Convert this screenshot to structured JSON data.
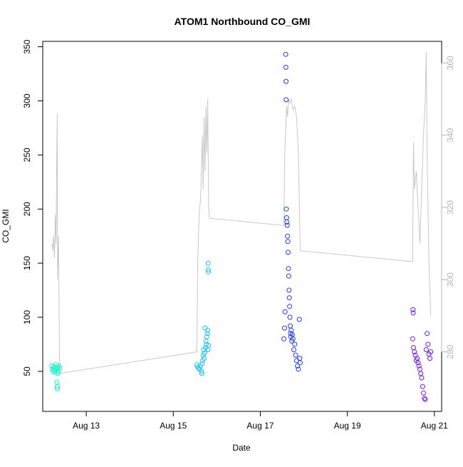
{
  "chart_data": {
    "type": "scatter",
    "title": "ATOM1 Northbound CO_GMI",
    "xlabel": "Date",
    "ylabel": "CO_GMI",
    "xlim": [
      "2016-08-12T00:00",
      "2016-08-21T04:00"
    ],
    "ylim": [
      13,
      355
    ],
    "y2lim": [
      263.5,
      366
    ],
    "x_ticks": [
      {
        "x": "2016-08-13T00:00",
        "label": "Aug 13"
      },
      {
        "x": "2016-08-15T00:00",
        "label": "Aug 15"
      },
      {
        "x": "2016-08-17T00:00",
        "label": "Aug 17"
      },
      {
        "x": "2016-08-19T00:00",
        "label": "Aug 19"
      },
      {
        "x": "2016-08-21T00:00",
        "label": "Aug 21"
      }
    ],
    "y_ticks": [
      50,
      100,
      150,
      200,
      250,
      300,
      350
    ],
    "y2_ticks": [
      280,
      300,
      320,
      340,
      360
    ],
    "grid": false,
    "colors": {
      "flight_1": "#14f5c8",
      "flight_2": "#1ec3f5",
      "flight_3": "#1e3cf5",
      "flight_4": "#7814f5",
      "altitude_line": "#c8c8c8",
      "axis": "#000000",
      "right_axis": "#b4b4b4"
    },
    "series": [
      {
        "group": "flight_1",
        "x_start": "2016-08-12T05:00",
        "x_end": "2016-08-12T09:30",
        "points": [
          [
            "2016-08-12T05:00",
            55
          ],
          [
            "2016-08-12T05:20",
            52
          ],
          [
            "2016-08-12T05:40",
            50
          ],
          [
            "2016-08-12T06:00",
            54
          ],
          [
            "2016-08-12T06:20",
            51
          ],
          [
            "2016-08-12T06:40",
            53
          ],
          [
            "2016-08-12T07:00",
            49
          ],
          [
            "2016-08-12T07:20",
            56
          ],
          [
            "2016-08-12T07:40",
            52
          ],
          [
            "2016-08-12T08:00",
            54
          ],
          [
            "2016-08-12T08:20",
            48
          ],
          [
            "2016-08-12T08:40",
            50
          ],
          [
            "2016-08-12T09:00",
            55
          ],
          [
            "2016-08-12T09:20",
            53
          ],
          [
            "2016-08-12T07:50",
            40
          ],
          [
            "2016-08-12T08:00",
            36
          ],
          [
            "2016-08-12T08:05",
            34
          ]
        ]
      },
      {
        "group": "flight_2",
        "x_start": "2016-08-15T13:00",
        "x_end": "2016-08-15T19:30",
        "points": [
          [
            "2016-08-15T13:00",
            56
          ],
          [
            "2016-08-15T13:30",
            54
          ],
          [
            "2016-08-15T14:00",
            53
          ],
          [
            "2016-08-15T14:30",
            52
          ],
          [
            "2016-08-15T15:00",
            55
          ],
          [
            "2016-08-15T15:30",
            50
          ],
          [
            "2016-08-15T15:45",
            48
          ],
          [
            "2016-08-15T16:00",
            57
          ],
          [
            "2016-08-15T16:15",
            60
          ],
          [
            "2016-08-15T16:30",
            65
          ],
          [
            "2016-08-15T16:45",
            70
          ],
          [
            "2016-08-15T17:00",
            62
          ],
          [
            "2016-08-15T17:15",
            67
          ],
          [
            "2016-08-15T17:30",
            90
          ],
          [
            "2016-08-15T17:45",
            72
          ],
          [
            "2016-08-15T18:00",
            78
          ],
          [
            "2016-08-15T18:15",
            75
          ],
          [
            "2016-08-15T18:30",
            82
          ],
          [
            "2016-08-15T18:45",
            85
          ],
          [
            "2016-08-15T19:00",
            88
          ],
          [
            "2016-08-15T19:10",
            70
          ],
          [
            "2016-08-15T19:15",
            150
          ],
          [
            "2016-08-15T19:20",
            144
          ],
          [
            "2016-08-15T19:25",
            142
          ],
          [
            "2016-08-15T19:30",
            74
          ]
        ]
      },
      {
        "group": "flight_3",
        "x_start": "2016-08-17T13:00",
        "x_end": "2016-08-17T22:00",
        "points": [
          [
            "2016-08-17T13:00",
            80
          ],
          [
            "2016-08-17T13:20",
            90
          ],
          [
            "2016-08-17T13:40",
            105
          ],
          [
            "2016-08-17T14:00",
            343
          ],
          [
            "2016-08-17T14:05",
            331
          ],
          [
            "2016-08-17T14:10",
            318
          ],
          [
            "2016-08-17T14:15",
            301
          ],
          [
            "2016-08-17T14:20",
            200
          ],
          [
            "2016-08-17T14:30",
            192
          ],
          [
            "2016-08-17T14:40",
            188
          ],
          [
            "2016-08-17T14:50",
            185
          ],
          [
            "2016-08-17T15:00",
            175
          ],
          [
            "2016-08-17T15:10",
            170
          ],
          [
            "2016-08-17T15:20",
            160
          ],
          [
            "2016-08-17T15:30",
            145
          ],
          [
            "2016-08-17T15:40",
            138
          ],
          [
            "2016-08-17T15:50",
            125
          ],
          [
            "2016-08-17T16:00",
            118
          ],
          [
            "2016-08-17T16:10",
            110
          ],
          [
            "2016-08-17T16:20",
            100
          ],
          [
            "2016-08-17T16:30",
            92
          ],
          [
            "2016-08-17T16:40",
            85
          ],
          [
            "2016-08-17T16:50",
            82
          ],
          [
            "2016-08-17T17:00",
            88
          ],
          [
            "2016-08-17T17:20",
            78
          ],
          [
            "2016-08-17T17:40",
            84
          ],
          [
            "2016-08-17T18:00",
            80
          ],
          [
            "2016-08-17T18:30",
            70
          ],
          [
            "2016-08-17T19:00",
            75
          ],
          [
            "2016-08-17T19:30",
            65
          ],
          [
            "2016-08-17T20:00",
            60
          ],
          [
            "2016-08-17T20:30",
            55
          ],
          [
            "2016-08-17T21:00",
            52
          ],
          [
            "2016-08-17T21:30",
            98
          ],
          [
            "2016-08-17T21:45",
            62
          ],
          [
            "2016-08-17T22:00",
            58
          ]
        ]
      },
      {
        "group": "flight_4",
        "x_start": "2016-08-20T12:00",
        "x_end": "2016-08-20T22:00",
        "points": [
          [
            "2016-08-20T12:00",
            80
          ],
          [
            "2016-08-20T12:10",
            107
          ],
          [
            "2016-08-20T12:20",
            104
          ],
          [
            "2016-08-20T12:30",
            72
          ],
          [
            "2016-08-20T13:00",
            68
          ],
          [
            "2016-08-20T13:30",
            65
          ],
          [
            "2016-08-20T14:00",
            60
          ],
          [
            "2016-08-20T14:30",
            62
          ],
          [
            "2016-08-20T15:00",
            58
          ],
          [
            "2016-08-20T15:30",
            55
          ],
          [
            "2016-08-20T16:00",
            52
          ],
          [
            "2016-08-20T16:30",
            48
          ],
          [
            "2016-08-20T17:00",
            44
          ],
          [
            "2016-08-20T17:30",
            36
          ],
          [
            "2016-08-20T18:00",
            30
          ],
          [
            "2016-08-20T18:30",
            25
          ],
          [
            "2016-08-20T19:00",
            24
          ],
          [
            "2016-08-20T19:30",
            70
          ],
          [
            "2016-08-20T20:00",
            85
          ],
          [
            "2016-08-20T20:30",
            75
          ],
          [
            "2016-08-20T21:00",
            66
          ],
          [
            "2016-08-20T21:30",
            62
          ],
          [
            "2016-08-20T22:00",
            68
          ]
        ]
      }
    ],
    "altitude_trace": [
      [
        "2016-08-12T05:00",
        310
      ],
      [
        "2016-08-12T05:30",
        308
      ],
      [
        "2016-08-12T06:00",
        312
      ],
      [
        "2016-08-12T06:30",
        306
      ],
      [
        "2016-08-12T07:00",
        318
      ],
      [
        "2016-08-12T07:20",
        310
      ],
      [
        "2016-08-12T07:40",
        330
      ],
      [
        "2016-08-12T08:00",
        346
      ],
      [
        "2016-08-12T08:10",
        300
      ],
      [
        "2016-08-12T08:40",
        312
      ],
      [
        "2016-08-12T09:20",
        274
      ],
      [
        "2016-08-15T13:00",
        280
      ],
      [
        "2016-08-15T13:30",
        305
      ],
      [
        "2016-08-15T14:00",
        314
      ],
      [
        "2016-08-15T14:30",
        320
      ],
      [
        "2016-08-15T15:00",
        322
      ],
      [
        "2016-08-15T15:30",
        330
      ],
      [
        "2016-08-15T16:00",
        340
      ],
      [
        "2016-08-15T16:30",
        325
      ],
      [
        "2016-08-15T17:00",
        345
      ],
      [
        "2016-08-15T17:30",
        330
      ],
      [
        "2016-08-15T18:00",
        348
      ],
      [
        "2016-08-15T18:30",
        335
      ],
      [
        "2016-08-15T19:00",
        350
      ],
      [
        "2016-08-15T19:30",
        320
      ],
      [
        "2016-08-15T20:00",
        317
      ],
      [
        "2016-08-17T13:00",
        315
      ],
      [
        "2016-08-17T13:30",
        335
      ],
      [
        "2016-08-17T14:00",
        342
      ],
      [
        "2016-08-17T14:30",
        348
      ],
      [
        "2016-08-17T15:00",
        345
      ],
      [
        "2016-08-17T15:30",
        350
      ],
      [
        "2016-08-17T16:00",
        349
      ],
      [
        "2016-08-17T17:00",
        350
      ],
      [
        "2016-08-17T18:00",
        347
      ],
      [
        "2016-08-17T19:00",
        348
      ],
      [
        "2016-08-17T20:00",
        345
      ],
      [
        "2016-08-17T21:00",
        335
      ],
      [
        "2016-08-17T22:00",
        308
      ],
      [
        "2016-08-20T12:00",
        305
      ],
      [
        "2016-08-20T12:30",
        338
      ],
      [
        "2016-08-20T13:00",
        325
      ],
      [
        "2016-08-20T14:00",
        330
      ],
      [
        "2016-08-20T15:00",
        320
      ],
      [
        "2016-08-20T16:00",
        310
      ],
      [
        "2016-08-20T17:00",
        325
      ],
      [
        "2016-08-20T18:00",
        340
      ],
      [
        "2016-08-20T19:00",
        350
      ],
      [
        "2016-08-20T19:30",
        363
      ],
      [
        "2016-08-20T20:00",
        335
      ],
      [
        "2016-08-20T21:00",
        305
      ],
      [
        "2016-08-20T22:00",
        290
      ]
    ]
  }
}
